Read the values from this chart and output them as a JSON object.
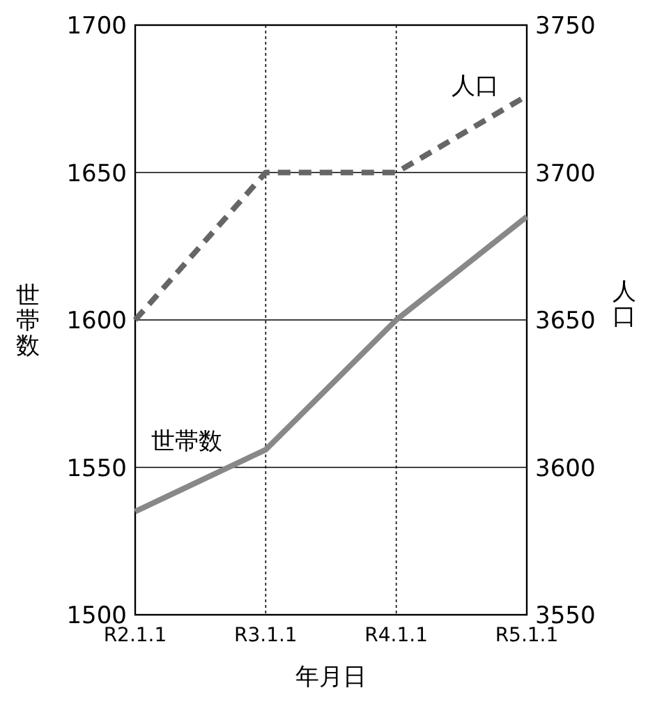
{
  "chart_data": {
    "type": "line",
    "xlabel": "年月日",
    "ylabel": "世帯数",
    "y2label": "人口",
    "categories": [
      "R2.1.1",
      "R3.1.1",
      "R4.1.1",
      "R5.1.1"
    ],
    "series": [
      {
        "name": "世帯数",
        "color": "#888888",
        "values": [
          1535,
          1556,
          1600,
          1635
        ],
        "line_style": "solid"
      },
      {
        "name": "人口",
        "color": "#666666",
        "values": [
          3650,
          3700,
          3700,
          3726
        ],
        "axis": "y2",
        "line_style": "dashed"
      }
    ],
    "ylim": [
      1500,
      1700
    ],
    "yticks": [
      1500,
      1550,
      1600,
      1650,
      1700
    ],
    "y2lim": [
      3550,
      3750
    ],
    "y2ticks": [
      3550,
      3600,
      3650,
      3700,
      3750
    ],
    "grid": true
  }
}
